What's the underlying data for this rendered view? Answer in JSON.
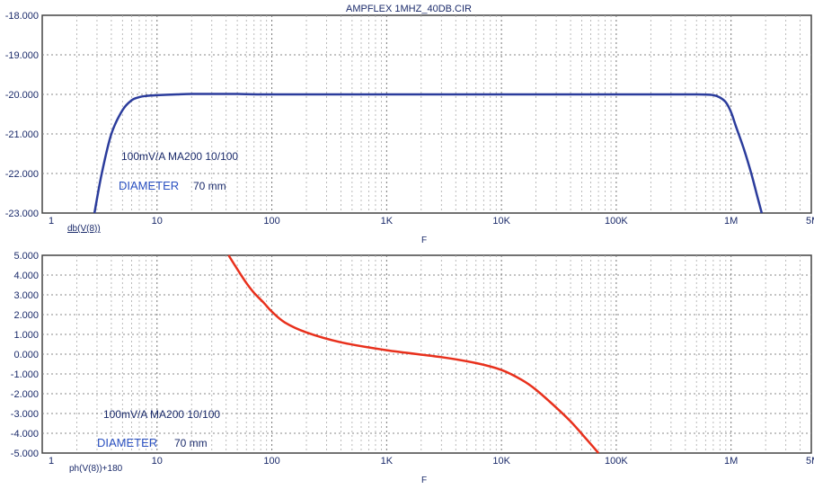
{
  "chart_data": [
    {
      "type": "line",
      "title": "AMPFLEX 1MHZ_40DB.CIR",
      "xlabel": "F",
      "x_scale": "log",
      "xlim": [
        1,
        5000000
      ],
      "ylim": [
        -23,
        -18
      ],
      "grid": true,
      "x_tick_labels": [
        "1",
        "10",
        "100",
        "1K",
        "10K",
        "100K",
        "1M",
        "5M"
      ],
      "y_tick_labels": [
        "-18.000",
        "-19.000",
        "-20.000",
        "-21.000",
        "-22.000",
        "-23.000"
      ],
      "y_ticks": [
        -18,
        -19,
        -20,
        -21,
        -22,
        -23
      ],
      "annotations": [
        "100mV/A  MA200  10/100",
        "DIAMETER",
        "70 mm"
      ],
      "color": "#2b3c9c",
      "series": [
        {
          "name": "db(V(8))",
          "x": [
            2.85,
            3.3,
            4,
            5,
            6,
            7,
            8,
            10,
            15,
            20,
            30,
            50,
            100,
            1000,
            10000,
            100000,
            500000,
            700000,
            800000,
            900000,
            1000000,
            1100000,
            1300000,
            1500000,
            1700000,
            1850000
          ],
          "y": [
            -23,
            -22.0,
            -21.0,
            -20.4,
            -20.15,
            -20.07,
            -20.04,
            -20.02,
            -20.0,
            -19.99,
            -19.99,
            -19.99,
            -20.0,
            -20.0,
            -20.0,
            -20.0,
            -20.0,
            -20.02,
            -20.08,
            -20.2,
            -20.45,
            -20.8,
            -21.4,
            -22.0,
            -22.6,
            -23
          ]
        }
      ]
    },
    {
      "type": "line",
      "xlabel": "F",
      "x_scale": "log",
      "xlim": [
        1,
        5000000
      ],
      "ylim": [
        -5,
        5
      ],
      "grid": true,
      "x_tick_labels": [
        "1",
        "10",
        "100",
        "1K",
        "10K",
        "100K",
        "1M",
        "5M"
      ],
      "y_tick_labels": [
        "5.000",
        "4.000",
        "3.000",
        "2.000",
        "1.000",
        "0.000",
        "-1.000",
        "-2.000",
        "-3.000",
        "-4.000",
        "-5.000"
      ],
      "y_ticks": [
        5,
        4,
        3,
        2,
        1,
        0,
        -1,
        -2,
        -3,
        -4,
        -5
      ],
      "annotations": [
        "100mV/A  MA200  10/100",
        "DIAMETER",
        "70 mm"
      ],
      "color": "#e8301c",
      "series": [
        {
          "name": "ph(V(8))+180",
          "x": [
            42,
            50,
            60,
            70,
            85,
            100,
            130,
            200,
            400,
            1000,
            3000,
            6000,
            10000,
            15000,
            20000,
            30000,
            40000,
            55000,
            70000
          ],
          "y": [
            5.0,
            4.3,
            3.6,
            3.1,
            2.6,
            2.15,
            1.6,
            1.1,
            0.6,
            0.2,
            -0.15,
            -0.45,
            -0.8,
            -1.3,
            -1.8,
            -2.7,
            -3.4,
            -4.3,
            -5.0
          ]
        }
      ]
    }
  ]
}
